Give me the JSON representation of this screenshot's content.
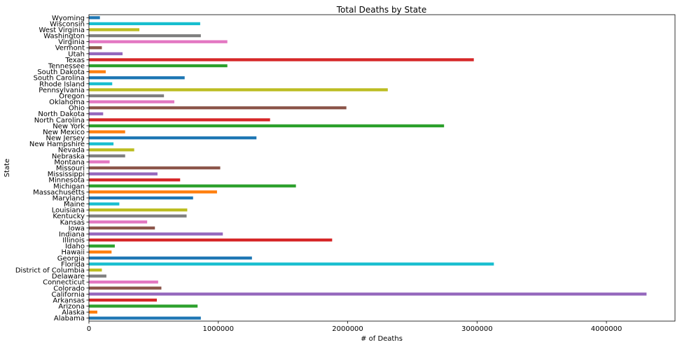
{
  "chart_data": {
    "type": "bar",
    "orientation": "horizontal",
    "title": "Total Deaths by State",
    "xlabel": "# of Deaths",
    "ylabel": "State",
    "xlim": [
      0,
      4530000
    ],
    "xticks": [
      0,
      1000000,
      2000000,
      3000000,
      4000000
    ],
    "xtick_labels": [
      "0",
      "1000000",
      "2000000",
      "3000000",
      "4000000"
    ],
    "grid": false,
    "legend": "none",
    "categories": [
      "Alabama",
      "Alaska",
      "Arizona",
      "Arkansas",
      "California",
      "Colorado",
      "Connecticut",
      "Delaware",
      "District of Columbia",
      "Florida",
      "Georgia",
      "Hawaii",
      "Idaho",
      "Illinois",
      "Indiana",
      "Iowa",
      "Kansas",
      "Kentucky",
      "Louisiana",
      "Maine",
      "Maryland",
      "Massachusetts",
      "Michigan",
      "Minnesota",
      "Mississippi",
      "Missouri",
      "Montana",
      "Nebraska",
      "Nevada",
      "New Hampshire",
      "New Jersey",
      "New Mexico",
      "New York",
      "North Carolina",
      "North Dakota",
      "Ohio",
      "Oklahoma",
      "Oregon",
      "Pennsylvania",
      "Rhode Island",
      "South Carolina",
      "South Dakota",
      "Tennessee",
      "Texas",
      "Utah",
      "Vermont",
      "Virginia",
      "Washington",
      "West Virginia",
      "Wisconsin",
      "Wyoming"
    ],
    "values": [
      865000,
      65000,
      840000,
      525000,
      4310000,
      560000,
      535000,
      135000,
      100000,
      3130000,
      1260000,
      175000,
      200000,
      1880000,
      1035000,
      510000,
      450000,
      755000,
      760000,
      235000,
      805000,
      990000,
      1600000,
      705000,
      530000,
      1015000,
      160000,
      280000,
      350000,
      190000,
      1295000,
      280000,
      2745000,
      1400000,
      110000,
      1990000,
      660000,
      580000,
      2310000,
      180000,
      740000,
      130000,
      1070000,
      2975000,
      260000,
      100000,
      1070000,
      865000,
      390000,
      860000,
      85000
    ],
    "palette": [
      "#1f77b4",
      "#ff7f0e",
      "#2ca02c",
      "#d62728",
      "#9467bd",
      "#8c564b",
      "#e377c2",
      "#7f7f7f",
      "#bcbd22",
      "#17becf"
    ]
  }
}
